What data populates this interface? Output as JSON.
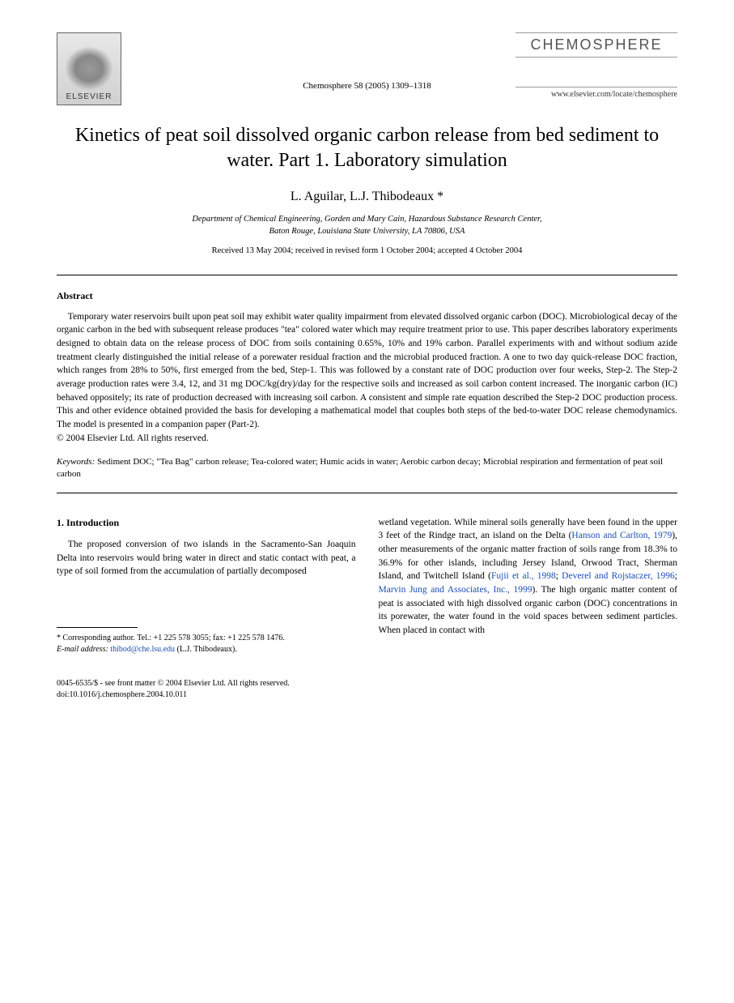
{
  "publisher": {
    "name": "ELSEVIER"
  },
  "journal": {
    "brand": "CHEMOSPHERE",
    "citation": "Chemosphere 58 (2005) 1309–1318",
    "url": "www.elsevier.com/locate/chemosphere"
  },
  "title": "Kinetics of peat soil dissolved organic carbon release from bed sediment to water. Part 1. Laboratory simulation",
  "authors": "L. Aguilar, L.J. Thibodeaux *",
  "affiliation_line1": "Department of Chemical Engineering, Gorden and Mary Cain, Hazardous Substance Research Center,",
  "affiliation_line2": "Baton Rouge, Louisiana State University, LA 70806, USA",
  "dates": "Received 13 May 2004; received in revised form 1 October 2004; accepted 4 October 2004",
  "abstract": {
    "heading": "Abstract",
    "body": "Temporary water reservoirs built upon peat soil may exhibit water quality impairment from elevated dissolved organic carbon (DOC). Microbiological decay of the organic carbon in the bed with subsequent release produces \"tea\" colored water which may require treatment prior to use. This paper describes laboratory experiments designed to obtain data on the release process of DOC from soils containing 0.65%, 10% and 19% carbon. Parallel experiments with and without sodium azide treatment clearly distinguished the initial release of a porewater residual fraction and the microbial produced fraction. A one to two day quick-release DOC fraction, which ranges from 28% to 50%, first emerged from the bed, Step-1. This was followed by a constant rate of DOC production over four weeks, Step-2. The Step-2 average production rates were 3.4, 12, and 31 mg DOC/kg(dry)/day for the respective soils and increased as soil carbon content increased. The inorganic carbon (IC) behaved oppositely; its rate of production decreased with increasing soil carbon. A consistent and simple rate equation described the Step-2 DOC production process. This and other evidence obtained provided the basis for developing a mathematical model that couples both steps of the bed-to-water DOC release chemodynamics. The model is presented in a companion paper (Part-2).",
    "copyright": "© 2004 Elsevier Ltd. All rights reserved."
  },
  "keywords": {
    "label": "Keywords:",
    "text": " Sediment DOC; \"Tea Bag\" carbon release; Tea-colored water; Humic acids in water; Aerobic carbon decay; Microbial respiration and fermentation of peat soil carbon"
  },
  "introduction": {
    "heading": "1. Introduction",
    "col1": "The proposed conversion of two islands in the Sacramento-San Joaquin Delta into reservoirs would bring water in direct and static contact with peat, a type of soil formed from the accumulation of partially decomposed",
    "col2_part1": "wetland vegetation. While mineral soils generally have been found in the upper 3 feet of the Rindge tract, an island on the Delta (",
    "col2_ref1": "Hanson and Carlton, 1979",
    "col2_part2": "), other measurements of the organic matter fraction of soils range from 18.3% to 36.9% for other islands, including Jersey Island, Orwood Tract, Sherman Island, and Twitchell Island (",
    "col2_ref2": "Fujii et al., 1998",
    "col2_sep1": "; ",
    "col2_ref3": "Deverel and Rojstaczer, 1996",
    "col2_sep2": "; ",
    "col2_ref4": "Marvin Jung and Associates, Inc., 1999",
    "col2_part3": "). The high organic matter content of peat is associated with high dissolved organic carbon (DOC) concentrations in its porewater, the water found in the void spaces between sediment particles. When placed in contact with"
  },
  "footnote": {
    "corr": "* Corresponding author. Tel.: +1 225 578 3055; fax: +1 225 578 1476.",
    "email_label": "E-mail address:",
    "email": "thibod@che.lsu.edu",
    "email_paren": " (L.J. Thibodeaux)."
  },
  "footer": {
    "line1": "0045-6535/$ - see front matter © 2004 Elsevier Ltd. All rights reserved.",
    "line2": "doi:10.1016/j.chemosphere.2004.10.011"
  }
}
